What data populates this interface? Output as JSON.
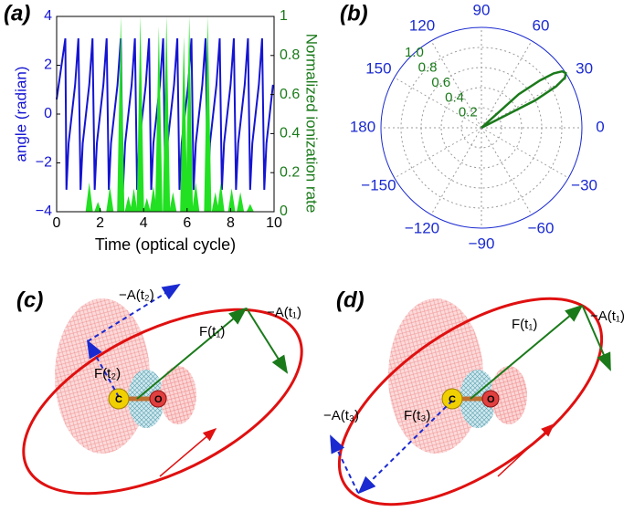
{
  "chart_data": [
    {
      "type": "line",
      "panel": "(a)",
      "xlabel": "Time (optical cycle)",
      "ylabel": "angle (radian)",
      "y2label": "Normalized ionization rate",
      "xlim": [
        0,
        10
      ],
      "xticks": [
        0,
        2,
        4,
        6,
        8,
        10
      ],
      "ylim": [
        -4,
        4
      ],
      "yticks": [
        {
          "value": -4,
          "label": "−4"
        },
        {
          "value": -2,
          "label": "−2"
        },
        0,
        2,
        4
      ],
      "y2lim": [
        0,
        1
      ],
      "y2ticks": [
        0,
        0.2,
        0.4,
        0.6,
        0.8,
        1
      ],
      "series": [
        {
          "color": "#1414d2",
          "x": [
            0,
            0.4,
            0.45,
            0.55,
            0.85,
            1.0,
            1.1,
            1.2,
            1.5,
            1.65,
            1.75,
            1.85,
            2.15,
            2.3,
            2.4,
            2.5,
            2.8,
            2.95,
            3.05,
            3.15,
            3.45,
            3.6,
            3.7,
            3.8,
            4.1,
            4.25,
            4.35,
            4.45,
            4.75,
            4.9,
            5.0,
            5.1,
            5.4,
            5.55,
            5.65,
            5.75,
            6.05,
            6.2,
            6.3,
            6.4,
            6.7,
            6.85,
            6.95,
            7.05,
            7.35,
            7.5,
            7.6,
            7.7,
            8.0,
            8.15,
            8.25,
            8.35,
            8.65,
            8.8,
            8.9,
            9.0,
            9.3,
            9.45,
            9.55,
            9.65,
            9.95
          ],
          "values": [
            0.6,
            3.1,
            -3.1,
            -1.2,
            1.2,
            3.1,
            -3.1,
            -1.2,
            1.2,
            3.1,
            -3.1,
            -1.2,
            1.2,
            3.1,
            -3.1,
            -1.2,
            1.2,
            3.1,
            -3.1,
            -1.2,
            1.2,
            3.1,
            -3.1,
            -1.2,
            1.2,
            3.1,
            -3.1,
            -1.2,
            1.2,
            3.1,
            -3.1,
            -1.2,
            1.2,
            3.1,
            -3.1,
            -1.2,
            1.2,
            3.1,
            -3.1,
            -1.2,
            1.2,
            3.1,
            -3.1,
            -1.2,
            1.2,
            3.1,
            -3.1,
            -1.2,
            1.2,
            3.1,
            -3.1,
            -1.2,
            1.2,
            3.1,
            -3.1,
            -1.2,
            1.2,
            3.1,
            -3.1,
            -1.2,
            1.2
          ]
        },
        {
          "color": "#22e022",
          "axis": "y2",
          "fill": true,
          "x": [
            1.5,
            1.9,
            2.45,
            2.95,
            3.3,
            3.55,
            3.85,
            4.15,
            4.45,
            4.7,
            5.05,
            5.35,
            5.85,
            6.1,
            6.4,
            6.95,
            7.3,
            7.55,
            8.05,
            8.45,
            8.9
          ],
          "values": [
            0.15,
            0.05,
            0.13,
            1.0,
            0.08,
            0.12,
            1.0,
            0.07,
            0.13,
            0.95,
            1.0,
            0.1,
            0.9,
            1.0,
            0.15,
            1.0,
            0.1,
            0.15,
            0.12,
            0.1,
            0.04
          ]
        }
      ]
    },
    {
      "type": "polar",
      "panel": "(b)",
      "rlim": [
        0,
        1
      ],
      "rticks": [
        0.2,
        0.4,
        0.6,
        0.8,
        {
          "value": 1,
          "label": "1.0"
        }
      ],
      "thetaticks": [
        0,
        30,
        60,
        90,
        120,
        150,
        180,
        {
          "value": -150,
          "label": "−150"
        },
        {
          "value": -120,
          "label": "−120"
        },
        {
          "value": -90,
          "label": "−90"
        },
        {
          "value": -60,
          "label": "−60"
        },
        {
          "value": -30,
          "label": "−30"
        }
      ],
      "series": [
        {
          "color": "#1a7a1a",
          "theta": [
            35,
            27,
            29,
            31,
            33,
            35,
            37,
            39,
            42,
            35
          ],
          "r": [
            0,
            0.6,
            0.85,
            0.97,
            1.0,
            0.98,
            0.9,
            0.75,
            0.5,
            0
          ]
        }
      ]
    }
  ],
  "diagrams": [
    {
      "panel": "(c)",
      "labels": [
        "−A(t₂)",
        "−A(t₁)",
        "F(t₁)",
        "F(t₂)",
        "C",
        "O"
      ]
    },
    {
      "panel": "(d)",
      "labels": [
        "F(t₁)",
        "−A(t₁)",
        "−A(t₃)",
        "F(t₃)",
        "C",
        "O"
      ]
    }
  ]
}
